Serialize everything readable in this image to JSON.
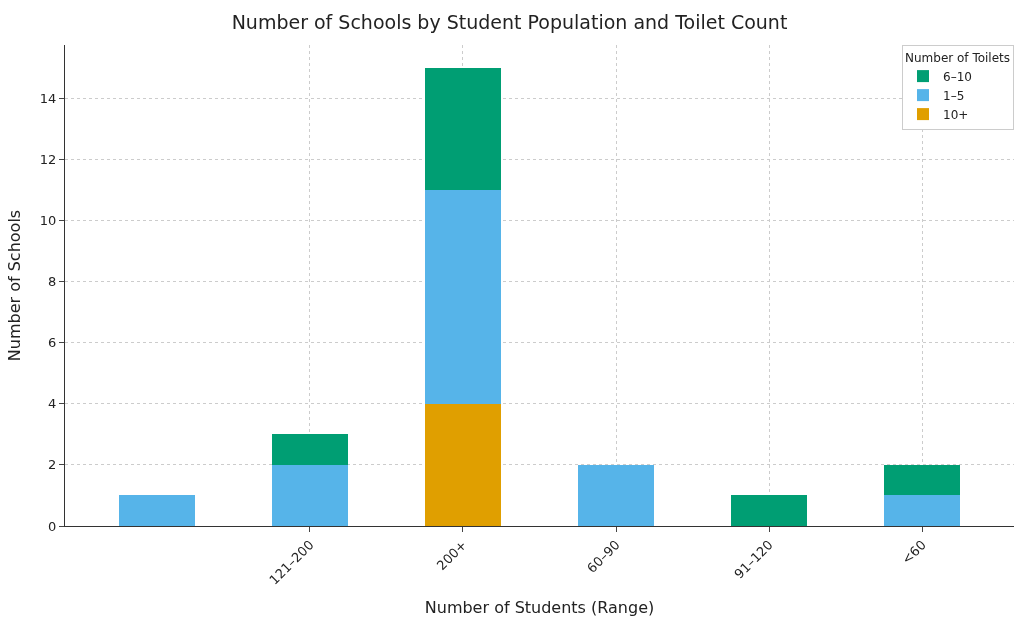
{
  "chart_data": {
    "type": "bar",
    "title": "Number of Schools by Student Population and Toilet Count",
    "xlabel": "Number of Students (Range)",
    "ylabel": "Number of Schools",
    "legend_title": "Number of Toilets",
    "categories": [
      null,
      "121–200",
      "200+",
      "60–90",
      "91–120",
      "<60"
    ],
    "stacked": true,
    "series": [
      {
        "name": "10+",
        "color": "#e09f00",
        "values": [
          0,
          0,
          4,
          0,
          0,
          0
        ]
      },
      {
        "name": "1–5",
        "color": "#56b4e9",
        "values": [
          1,
          2,
          7,
          2,
          0,
          1
        ]
      },
      {
        "name": "6–10",
        "color": "#009e73",
        "values": [
          0,
          1,
          4,
          0,
          1,
          1
        ]
      }
    ],
    "ylim": [
      0,
      15.75
    ],
    "yticks": [
      0,
      2,
      4,
      6,
      8,
      10,
      12,
      14
    ],
    "grid": true,
    "legend": "top right"
  }
}
